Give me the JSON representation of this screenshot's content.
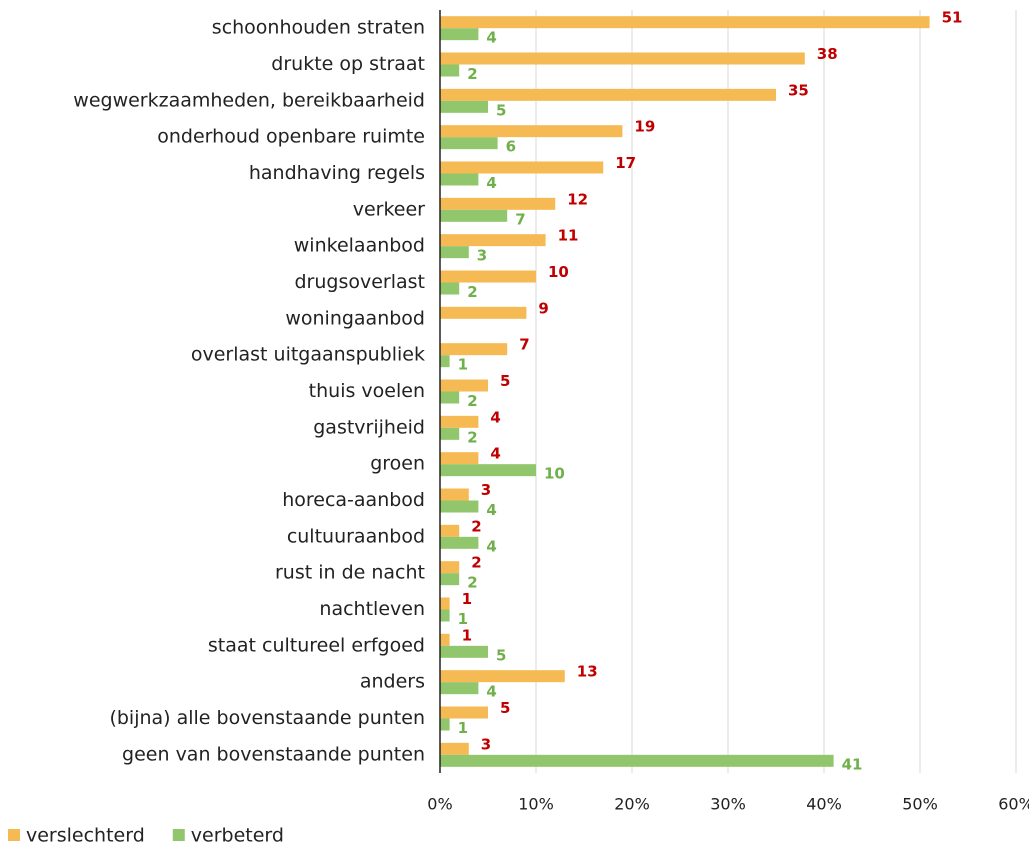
{
  "chart_data": {
    "type": "bar",
    "orientation": "horizontal",
    "categories": [
      "schoonhouden straten",
      "drukte op straat",
      "wegwerkzaamheden, bereikbaarheid",
      "onderhoud openbare ruimte",
      "handhaving regels",
      "verkeer",
      "winkelaanbod",
      "drugsoverlast",
      "woningaanbod",
      "overlast uitgaanspubliek",
      "thuis voelen",
      "gastvrijheid",
      "groen",
      "horeca-aanbod",
      "cultuuraanbod",
      "rust in de nacht",
      "nachtleven",
      "staat cultureel erfgoed",
      "anders",
      "(bijna) alle bovenstaande punten",
      "geen van bovenstaande punten"
    ],
    "series": [
      {
        "name": "verslechterd",
        "color": "#f6ba54",
        "label_color": "#c00000",
        "values": [
          51,
          38,
          35,
          19,
          17,
          12,
          11,
          10,
          9,
          7,
          5,
          4,
          4,
          3,
          2,
          2,
          1,
          1,
          13,
          5,
          3
        ]
      },
      {
        "name": "verbeterd",
        "color": "#92c66c",
        "label_color": "#6fb04a",
        "values": [
          4,
          2,
          5,
          6,
          4,
          7,
          3,
          2,
          null,
          1,
          2,
          2,
          10,
          4,
          4,
          2,
          1,
          5,
          4,
          1,
          41
        ]
      }
    ],
    "xlim": [
      0,
      60
    ],
    "xticks": [
      {
        "value": 0,
        "label": "0%"
      },
      {
        "value": 10,
        "label": "10%"
      },
      {
        "value": 20,
        "label": "20%"
      },
      {
        "value": 30,
        "label": "30%"
      },
      {
        "value": 40,
        "label": "40%"
      },
      {
        "value": 50,
        "label": "50%"
      },
      {
        "value": 60,
        "label": "60%"
      }
    ],
    "grid": true,
    "legend": "bottom-left"
  }
}
